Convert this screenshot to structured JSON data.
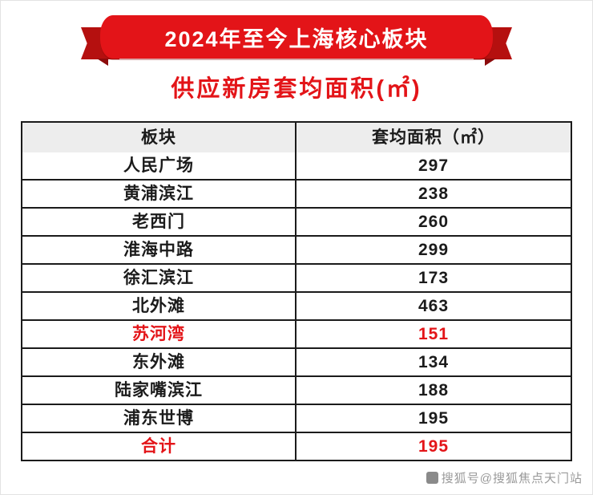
{
  "banner": {
    "title": "2024年至今上海核心板块"
  },
  "subtitle": "供应新房套均面积(㎡)",
  "chart_data": {
    "type": "table",
    "title": "2024年至今上海核心板块供应新房套均面积(㎡)",
    "columns": [
      "板块",
      "套均面积（㎡）"
    ],
    "rows": [
      [
        "人民广场",
        "297"
      ],
      [
        "黄浦滨江",
        "238"
      ],
      [
        "老西门",
        "260"
      ],
      [
        "淮海中路",
        "299"
      ],
      [
        "徐汇滨江",
        "173"
      ],
      [
        "北外滩",
        "463"
      ],
      [
        "苏河湾",
        "151"
      ],
      [
        "东外滩",
        "134"
      ],
      [
        "陆家嘴滨江",
        "188"
      ],
      [
        "浦东世博",
        "195"
      ],
      [
        "合计",
        "195"
      ]
    ],
    "highlight_rows": [
      "苏河湾",
      "合计"
    ]
  },
  "watermark": "搜狐号@搜狐焦点天门站",
  "colors": {
    "banner_red": "#e31418",
    "banner_dark_red": "#b5100f",
    "accent_red": "#e31418",
    "header_bg": "#ededed",
    "border": "#1b1b1b",
    "watermark_gray": "#9a9a9a"
  }
}
